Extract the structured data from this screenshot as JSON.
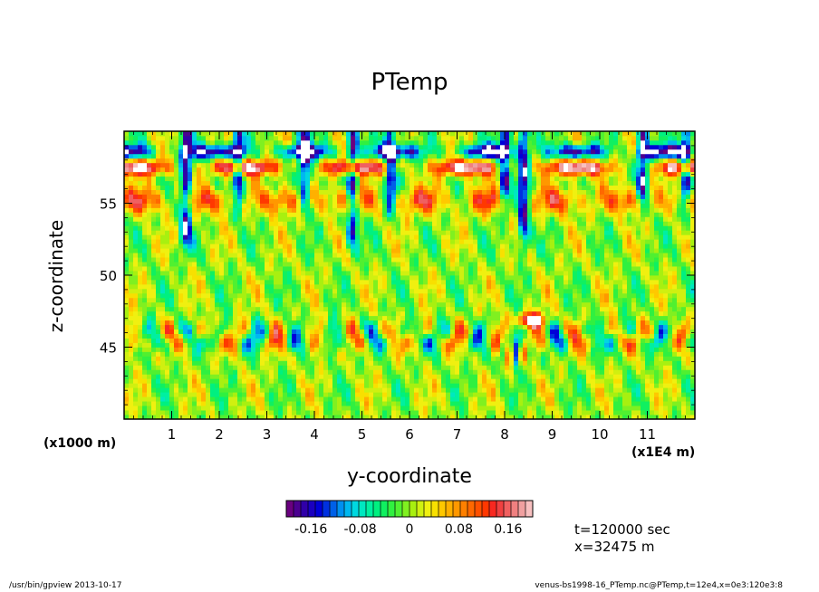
{
  "chart_data": {
    "type": "heatmap",
    "title": "PTemp",
    "xlabel": "y-coordinate",
    "ylabel": "z-coordinate",
    "x_unit_note": "(x1000 m)",
    "x_scale_note": "(x1E4 m)",
    "x_ticks": [
      "1",
      "2",
      "3",
      "4",
      "5",
      "6",
      "7",
      "8",
      "9",
      "10",
      "11"
    ],
    "y_ticks": [
      "45",
      "50",
      "55"
    ],
    "xlim": [
      0,
      12
    ],
    "ylim": [
      40,
      60
    ],
    "colorbar": {
      "min": -0.2,
      "max": 0.2,
      "tick_labels": [
        "-0.16",
        "-0.08",
        "0",
        "0.08",
        "0.16"
      ],
      "colors": [
        "#6a0080",
        "#4b0090",
        "#3000a8",
        "#1a00c0",
        "#0000d8",
        "#0030e0",
        "#0060e8",
        "#0090f0",
        "#00b8f0",
        "#00d8e0",
        "#00e8c0",
        "#00f0a0",
        "#00f080",
        "#10f060",
        "#30f040",
        "#50f030",
        "#80f020",
        "#a8f010",
        "#d0f010",
        "#f0f010",
        "#f8e000",
        "#ffc800",
        "#ffb000",
        "#ff9800",
        "#ff8000",
        "#ff6800",
        "#ff5000",
        "#ff3800",
        "#f82820",
        "#f04040",
        "#f06060",
        "#f08080",
        "#f0a0a0",
        "#f8c0c0"
      ]
    }
  },
  "annotations": {
    "time": "t=120000 sec",
    "position": "x=32475 m"
  },
  "footer": {
    "left": "/usr/bin/gpview   2013-10-17",
    "right": "venus-bs1998-16_PTemp.nc@PTemp,t=12e4,x=0e3:120e3:8"
  }
}
